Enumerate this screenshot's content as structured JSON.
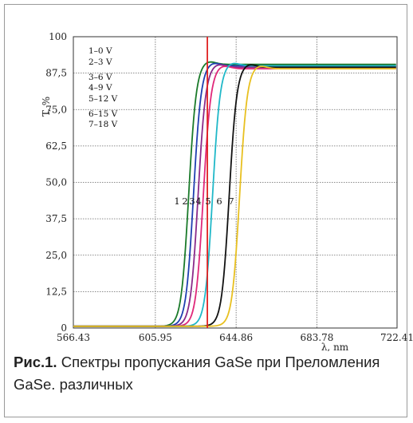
{
  "chart_data": {
    "type": "line",
    "title": "",
    "xlabel": "λ, nm",
    "ylabel": "T, %",
    "xlim": [
      566.43,
      722.41
    ],
    "ylim": [
      0,
      100
    ],
    "x_ticks": [
      "566.43",
      "605.95",
      "644.86",
      "683.78",
      "722.41"
    ],
    "y_ticks": [
      "0",
      "12,5",
      "25,0",
      "37,5",
      "50,0",
      "62,5",
      "75,0",
      "87,5",
      "100"
    ],
    "grid": true,
    "legend": [
      "1–0 V",
      "2–3 V",
      "3–6 V",
      "4–9 V",
      "5–12 V",
      "6–15 V",
      "7–18 V"
    ],
    "legend_placement": "top-left",
    "vertical_marker": 631,
    "series": [
      {
        "name": "1–0 V",
        "color": "#1a7a2a",
        "midpoint": 622.0,
        "plateau": 90.5
      },
      {
        "name": "2–3 V",
        "color": "#1f3fb0",
        "midpoint": 624.3,
        "plateau": 90.0
      },
      {
        "name": "3–6 V",
        "color": "#8a2a8a",
        "midpoint": 626.5,
        "plateau": 89.5
      },
      {
        "name": "4–9 V",
        "color": "#e0287a",
        "midpoint": 629.0,
        "plateau": 89.0
      },
      {
        "name": "5–12 V",
        "color": "#20b8c8",
        "midpoint": 633.5,
        "plateau": 90.0
      },
      {
        "name": "6–15 V",
        "color": "#111111",
        "midpoint": 641.5,
        "plateau": 89.5
      },
      {
        "name": "7–18 V",
        "color": "#e8c020",
        "midpoint": 646.5,
        "plateau": 89.0
      }
    ],
    "curve_labels": [
      "1",
      "2",
      "3",
      "4",
      "5",
      "6",
      "7"
    ],
    "marker_color": "#e02020"
  },
  "caption": {
    "prefix": "Рис.1.",
    "text": "Спектры пропускания GaSe при Преломления GaSe. различных"
  }
}
